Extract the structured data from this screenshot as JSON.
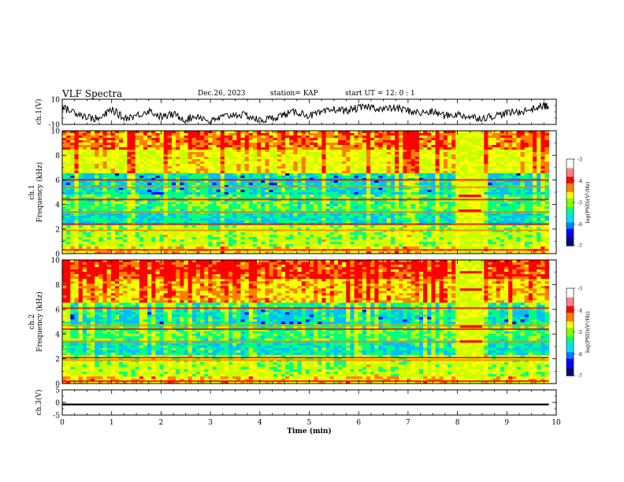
{
  "header": {
    "title": "VLF Spectra",
    "date": "Dec.26, 2023",
    "station": "station= KAP",
    "start_time": "start  UT =   12: 0  : 1"
  },
  "colors": {
    "spectrogram_scale": [
      "#000080",
      "#0000ff",
      "#00bfff",
      "#00ff80",
      "#c8ff00",
      "#ffff00",
      "#ff8000",
      "#ff0000"
    ],
    "trace": "#000000"
  },
  "chart_data": [
    {
      "type": "line",
      "panel": "waveform-ch1",
      "ylabel": "ch.1(V)",
      "ylim": [
        -10,
        10
      ],
      "yticks": [
        "10",
        "-10"
      ],
      "series": [
        {
          "x": [
            0,
            0.25,
            0.5,
            0.75,
            1.0,
            1.25,
            1.5,
            1.75,
            2.0,
            2.25,
            2.5,
            2.75,
            3.0,
            3.25,
            3.5,
            3.75,
            4.0,
            4.25,
            4.5,
            4.75,
            5.0,
            5.25,
            5.5,
            5.75,
            6.0,
            6.25,
            6.5,
            6.75,
            7.0,
            7.25,
            7.5,
            7.75,
            8.0,
            8.25,
            8.5,
            8.75,
            9.0,
            9.25,
            9.5,
            9.75,
            9.85
          ],
          "y": [
            3,
            0,
            -4,
            -6,
            2,
            -5,
            -3,
            1,
            -4,
            -2,
            -6,
            -3,
            -8,
            -4,
            -2,
            -3,
            -7,
            -5,
            -2,
            0,
            -3,
            -1,
            2,
            1,
            3,
            4,
            2,
            3,
            1,
            -1,
            0,
            -3,
            -2,
            -4,
            -5,
            -3,
            -1,
            0,
            2,
            5,
            4
          ]
        }
      ]
    },
    {
      "type": "heatmap",
      "panel": "spectrogram-ch1",
      "ylabel": "ch.1\nFrequency (kHz)",
      "ylim": [
        0,
        10
      ],
      "yticks": [
        "0",
        "2",
        "4",
        "6",
        "8",
        "10"
      ],
      "colorbar": {
        "label": "log(PSD)(V²/Hz)",
        "range": [
          -7,
          -3
        ],
        "ticks": [
          "-3",
          "-4",
          "-5",
          "-6",
          "-7"
        ]
      }
    },
    {
      "type": "heatmap",
      "panel": "spectrogram-ch2",
      "ylabel": "ch.2\nFrequency (kHz)",
      "ylim": [
        0,
        10
      ],
      "yticks": [
        "0",
        "2",
        "4",
        "6",
        "8",
        "10"
      ],
      "colorbar": {
        "label": "log(PSD)(V²/Hz)",
        "range": [
          -7,
          -3
        ],
        "ticks": [
          "-3",
          "-4",
          "-5",
          "-6",
          "-7"
        ]
      }
    },
    {
      "type": "line",
      "panel": "waveform-ch3",
      "ylabel": "ch.3(V)",
      "ylim": [
        -5,
        5
      ],
      "yticks": [
        "5",
        "0",
        "-5"
      ],
      "series": [
        {
          "x": [
            0,
            9.85
          ],
          "y": [
            -0.8,
            -0.8
          ]
        }
      ]
    }
  ],
  "xaxis": {
    "label": "Time  (min)",
    "ticks": [
      "0",
      "1",
      "2",
      "3",
      "4",
      "5",
      "6",
      "7",
      "8",
      "9",
      "10"
    ],
    "range": [
      0,
      10
    ]
  }
}
